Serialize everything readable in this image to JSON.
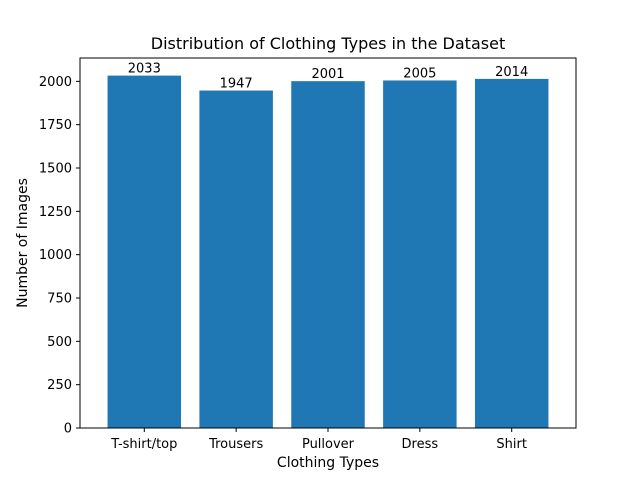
{
  "chart_data": {
    "type": "bar",
    "title": "Distribution of Clothing Types in the Dataset",
    "xlabel": "Clothing Types",
    "ylabel": "Number of Images",
    "categories": [
      "T-shirt/top",
      "Trousers",
      "Pullover",
      "Dress",
      "Shirt"
    ],
    "values": [
      2033,
      1947,
      2001,
      2005,
      2014
    ],
    "data_labels": [
      "2033",
      "1947",
      "2001",
      "2005",
      "2014"
    ],
    "yticks": [
      0,
      250,
      500,
      750,
      1000,
      1250,
      1500,
      1750,
      2000
    ],
    "ylim": [
      0,
      2134.65
    ],
    "grid": false,
    "bar_color": "#1f77b4"
  }
}
